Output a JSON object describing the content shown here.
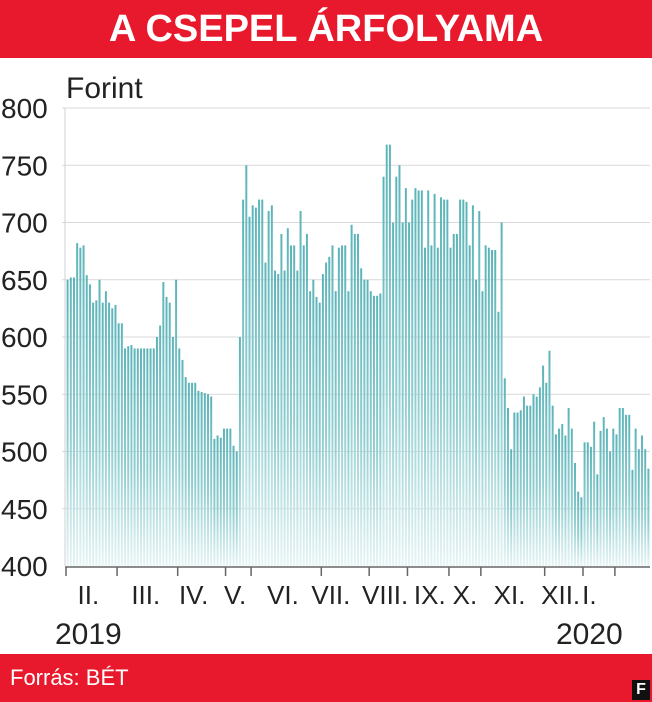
{
  "title": "A CSEPEL ÁRFOLYAMA",
  "source": "Forrás: BÉT",
  "logo": "F",
  "colors": {
    "accent": "#e8192c",
    "bar": "#5bb4b9",
    "bar_fade": "#e6f4f5"
  },
  "chart_data": {
    "type": "bar",
    "ylabel": "Forint",
    "ylim": [
      400,
      800
    ],
    "yticks": [
      400,
      450,
      500,
      550,
      600,
      650,
      700,
      750,
      800
    ],
    "month_labels": [
      "II.",
      "III.",
      "IV.",
      "V.",
      "VI.",
      "VII.",
      "VIII.",
      "IX.",
      "X.",
      "XI.",
      "XII.",
      "I."
    ],
    "month_label_bar_index": [
      7,
      25,
      40,
      53,
      68,
      83,
      100,
      114,
      125,
      139,
      155,
      164
    ],
    "month_start_bar_index": [
      0,
      16,
      35,
      50,
      58,
      80,
      95,
      107,
      120,
      130,
      150,
      162,
      172
    ],
    "year_labels": [
      {
        "text": "2019",
        "bar_index": 7
      },
      {
        "text": "2020",
        "bar_index": 164
      }
    ],
    "values": [
      650,
      652,
      652,
      682,
      678,
      680,
      654,
      646,
      630,
      632,
      650,
      630,
      640,
      630,
      625,
      628,
      612,
      612,
      590,
      592,
      593,
      590,
      590,
      590,
      590,
      590,
      590,
      590,
      600,
      610,
      648,
      635,
      630,
      600,
      650,
      590,
      580,
      565,
      560,
      560,
      560,
      553,
      552,
      551,
      550,
      548,
      511,
      514,
      512,
      520,
      520,
      520,
      505,
      500,
      600,
      720,
      750,
      705,
      715,
      713,
      720,
      720,
      665,
      710,
      715,
      658,
      655,
      690,
      658,
      695,
      680,
      680,
      658,
      710,
      680,
      690,
      640,
      650,
      635,
      630,
      655,
      665,
      670,
      680,
      640,
      678,
      680,
      680,
      640,
      698,
      690,
      690,
      660,
      650,
      650,
      640,
      636,
      636,
      638,
      740,
      768,
      768,
      700,
      740,
      750,
      700,
      730,
      700,
      720,
      730,
      728,
      728,
      678,
      728,
      680,
      725,
      678,
      722,
      720,
      720,
      678,
      690,
      690,
      720,
      720,
      718,
      680,
      715,
      650,
      710,
      640,
      680,
      678,
      676,
      676,
      622,
      700,
      564,
      538,
      502,
      534,
      534,
      536,
      548,
      540,
      540,
      550,
      548,
      556,
      575,
      560,
      588,
      540,
      515,
      520,
      524,
      514,
      538,
      520,
      490,
      465,
      460,
      508,
      508,
      504,
      526,
      480,
      518,
      530,
      520,
      500,
      520,
      515,
      538,
      538,
      532,
      532,
      484,
      520,
      502,
      514,
      502,
      485
    ]
  }
}
